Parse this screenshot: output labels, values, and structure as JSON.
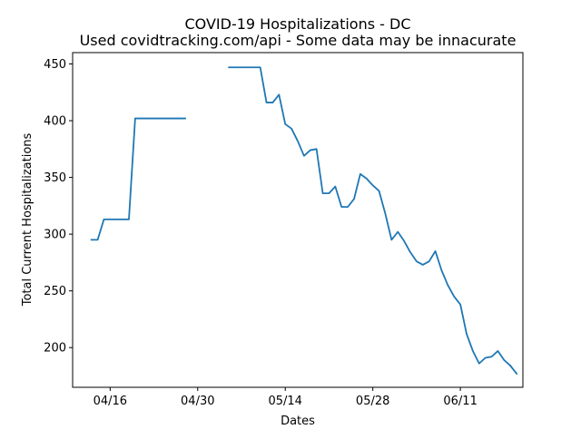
{
  "chart_data": {
    "type": "line",
    "title": "COVID-19 Hospitalizations - DC",
    "subtitle": "Used covidtracking.com/api - Some data may be innacurate",
    "xlabel": "Dates",
    "ylabel": "Total Current Hospitalizations",
    "xlim": [
      "2020-04-10",
      "2020-06-21"
    ],
    "ylim": [
      165,
      460
    ],
    "x_ticks": [
      {
        "date": "2020-04-16",
        "label": "04/16"
      },
      {
        "date": "2020-04-30",
        "label": "04/30"
      },
      {
        "date": "2020-05-14",
        "label": "05/14"
      },
      {
        "date": "2020-05-28",
        "label": "05/28"
      },
      {
        "date": "2020-06-11",
        "label": "06/11"
      }
    ],
    "y_ticks": [
      200,
      250,
      300,
      350,
      400,
      450
    ],
    "grid": false,
    "line_color": "#1f77b4",
    "series": [
      {
        "segments": [
          {
            "x": [
              "2020-04-13",
              "2020-04-14",
              "2020-04-15",
              "2020-04-16",
              "2020-04-17",
              "2020-04-18",
              "2020-04-19",
              "2020-04-20",
              "2020-04-21",
              "2020-04-22",
              "2020-04-23",
              "2020-04-24",
              "2020-04-25",
              "2020-04-26",
              "2020-04-27",
              "2020-04-28"
            ],
            "y": [
              295,
              295,
              313,
              313,
              313,
              313,
              313,
              402,
              402,
              402,
              402,
              402,
              402,
              402,
              402,
              402
            ]
          },
          {
            "x": [
              "2020-05-05",
              "2020-05-06",
              "2020-05-07",
              "2020-05-08",
              "2020-05-09",
              "2020-05-10",
              "2020-05-11",
              "2020-05-12",
              "2020-05-13",
              "2020-05-14",
              "2020-05-15",
              "2020-05-16",
              "2020-05-17",
              "2020-05-18",
              "2020-05-19",
              "2020-05-20",
              "2020-05-21",
              "2020-05-22",
              "2020-05-23",
              "2020-05-24",
              "2020-05-25",
              "2020-05-26",
              "2020-05-27",
              "2020-05-28",
              "2020-05-29",
              "2020-05-30",
              "2020-05-31",
              "2020-06-01",
              "2020-06-02",
              "2020-06-03",
              "2020-06-04",
              "2020-06-05",
              "2020-06-06",
              "2020-06-07",
              "2020-06-08",
              "2020-06-09",
              "2020-06-10",
              "2020-06-11",
              "2020-06-12",
              "2020-06-13",
              "2020-06-14",
              "2020-06-15",
              "2020-06-16",
              "2020-06-17",
              "2020-06-18",
              "2020-06-19"
            ],
            "y": [
              447,
              447,
              447,
              447,
              447,
              447,
              416,
              416,
              423,
              397,
              393,
              382,
              369,
              374,
              375,
              336,
              336,
              342,
              324,
              324,
              331,
              353,
              349,
              343,
              338,
              318,
              295,
              302,
              294,
              284,
              276,
              273,
              276,
              285,
              268,
              255,
              245,
              238,
              212,
              197,
              186,
              191,
              192,
              197,
              189,
              184
            ]
          },
          {
            "x": [
              "2020-06-19",
              "2020-06-20"
            ],
            "y": [
              184,
              177
            ]
          }
        ]
      }
    ]
  }
}
